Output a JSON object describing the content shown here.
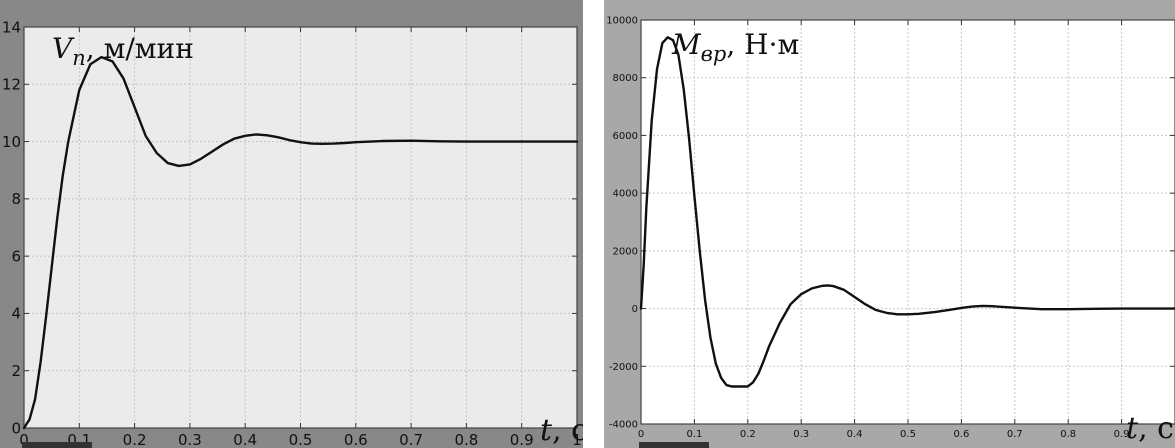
{
  "chart_data": [
    {
      "type": "line",
      "title": "",
      "ylabel": "V_n, м/мин",
      "ylabel_main": "V",
      "ylabel_sub": "n",
      "ylabel_rest": ", м/мин",
      "xlabel": "t, c",
      "xlabel_main": "t",
      "xlabel_rest": ", c",
      "xlim": [
        0,
        1
      ],
      "ylim": [
        0,
        14
      ],
      "xticks": [
        0,
        0.1,
        0.2,
        0.3,
        0.4,
        0.5,
        0.6,
        0.7,
        0.8,
        0.9,
        1
      ],
      "xtick_labels": [
        "0",
        "0.1",
        "0.2",
        "0.3",
        "0.4",
        "0.5",
        "0.6",
        "0.7",
        "0.8",
        "0.9",
        "1"
      ],
      "yticks": [
        0,
        2,
        4,
        6,
        8,
        10,
        12,
        14
      ],
      "ytick_labels": [
        "0",
        "2",
        "4",
        "6",
        "8",
        "10",
        "12",
        "14"
      ],
      "grid": true,
      "legend": "none",
      "colors": {
        "line": "#111111",
        "plot_background": "#ebebeb",
        "grid": "#c4c4c4",
        "frame": "#8a8a8a"
      },
      "series": [
        {
          "x": [
            0,
            0.01,
            0.02,
            0.03,
            0.04,
            0.05,
            0.06,
            0.07,
            0.08,
            0.1,
            0.12,
            0.14,
            0.16,
            0.18,
            0.2,
            0.22,
            0.24,
            0.26,
            0.28,
            0.3,
            0.32,
            0.34,
            0.36,
            0.38,
            0.4,
            0.42,
            0.44,
            0.46,
            0.48,
            0.5,
            0.52,
            0.54,
            0.56,
            0.58,
            0.6,
            0.65,
            0.7,
            0.75,
            0.8,
            0.85,
            0.9,
            0.95,
            1.0
          ],
          "values": [
            0,
            0.3,
            1.0,
            2.3,
            3.9,
            5.6,
            7.3,
            8.8,
            10.0,
            11.8,
            12.7,
            12.95,
            12.8,
            12.2,
            11.2,
            10.2,
            9.6,
            9.25,
            9.15,
            9.2,
            9.4,
            9.65,
            9.9,
            10.1,
            10.2,
            10.25,
            10.22,
            10.15,
            10.05,
            9.98,
            9.93,
            9.92,
            9.93,
            9.95,
            9.98,
            10.02,
            10.03,
            10.01,
            10.0,
            10.0,
            10.0,
            10.0,
            10.0
          ]
        }
      ]
    },
    {
      "type": "line",
      "title": "",
      "ylabel": "M_вр, Н·м",
      "ylabel_main": "M",
      "ylabel_sub": "вр",
      "ylabel_rest": ", Н·м",
      "xlabel": "t, c",
      "xlabel_main": "t",
      "xlabel_rest": ", c",
      "xlim": [
        0,
        1
      ],
      "ylim": [
        -4000,
        10000
      ],
      "xticks": [
        0,
        0.1,
        0.2,
        0.3,
        0.4,
        0.5,
        0.6,
        0.7,
        0.8,
        0.9
      ],
      "xtick_labels": [
        "0",
        "0.1",
        "0.2",
        "0.3",
        "0.4",
        "0.5",
        "0.6",
        "0.7",
        "0.8",
        "0.9"
      ],
      "yticks": [
        -4000,
        -2000,
        0,
        2000,
        4000,
        6000,
        8000,
        10000
      ],
      "ytick_labels": [
        "-4000",
        "-2000",
        "0",
        "2000",
        "4000",
        "6000",
        "8000",
        "10000"
      ],
      "grid": true,
      "legend": "none",
      "colors": {
        "line": "#111111",
        "plot_background": "#ffffff",
        "grid": "#c8c8c8",
        "frame": "#8a8a8a"
      },
      "series": [
        {
          "x": [
            0,
            0.005,
            0.01,
            0.02,
            0.03,
            0.04,
            0.05,
            0.06,
            0.07,
            0.08,
            0.09,
            0.1,
            0.11,
            0.12,
            0.13,
            0.14,
            0.15,
            0.16,
            0.17,
            0.18,
            0.19,
            0.2,
            0.21,
            0.22,
            0.23,
            0.24,
            0.26,
            0.28,
            0.3,
            0.32,
            0.34,
            0.35,
            0.36,
            0.38,
            0.4,
            0.42,
            0.44,
            0.46,
            0.48,
            0.5,
            0.52,
            0.55,
            0.58,
            0.6,
            0.62,
            0.64,
            0.66,
            0.7,
            0.75,
            0.8,
            0.85,
            0.9,
            0.95,
            1.0
          ],
          "values": [
            0,
            1500,
            3500,
            6500,
            8300,
            9200,
            9400,
            9300,
            8800,
            7600,
            5900,
            3900,
            2000,
            300,
            -1000,
            -1900,
            -2400,
            -2650,
            -2700,
            -2700,
            -2700,
            -2700,
            -2550,
            -2250,
            -1800,
            -1300,
            -500,
            150,
            500,
            700,
            790,
            800,
            780,
            650,
            400,
            150,
            -50,
            -150,
            -200,
            -200,
            -180,
            -120,
            -40,
            20,
            70,
            90,
            80,
            30,
            -20,
            -20,
            -10,
            0,
            0,
            0
          ]
        }
      ]
    }
  ]
}
